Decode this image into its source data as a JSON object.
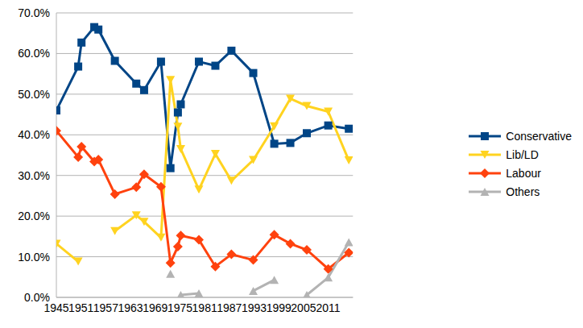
{
  "chart_data": {
    "type": "line",
    "x": [
      1945.0,
      1950.3,
      1951.1,
      1954.2,
      1955.2,
      1959.2,
      1964.4,
      1966.3,
      1970.4,
      1972.7,
      1974.5,
      1975.2,
      1979.6,
      1983.6,
      1987.5,
      1992.8,
      1997.9,
      2001.8,
      2005.8,
      2011.0,
      2016.0
    ],
    "xlim": [
      1945,
      2017
    ],
    "xticks": [
      1945,
      1951,
      1957,
      1963,
      1969,
      1975,
      1981,
      1987,
      1993,
      1999,
      2005,
      2011
    ],
    "ylim": [
      0,
      70
    ],
    "yticks": [
      {
        "value": 0,
        "label": "0.0%"
      },
      {
        "value": 10,
        "label": "10.0%"
      },
      {
        "value": 20,
        "label": "20.0%"
      },
      {
        "value": 30,
        "label": "30.0%"
      },
      {
        "value": 40,
        "label": "40.0%"
      },
      {
        "value": 50,
        "label": "50.0%"
      },
      {
        "value": 60,
        "label": "60.0%"
      },
      {
        "value": 70,
        "label": "70.0%"
      }
    ],
    "grid": true,
    "legend": "right",
    "series": [
      {
        "name": "Conservative",
        "color": "#004586",
        "marker": "square",
        "values": [
          46.0,
          56.8,
          62.7,
          66.5,
          65.9,
          58.2,
          52.6,
          51.0,
          58.0,
          31.8,
          45.5,
          47.5,
          58.0,
          57.0,
          60.7,
          55.2,
          37.8,
          38.0,
          40.4,
          42.3,
          41.5
        ]
      },
      {
        "name": "Lib/LD",
        "color": "#ffd320",
        "marker": "triangle-down",
        "values": [
          13.2,
          8.8,
          null,
          null,
          null,
          16.3,
          20.2,
          18.6,
          14.7,
          53.5,
          42.0,
          36.5,
          26.5,
          35.3,
          28.7,
          33.8,
          42.1,
          48.9,
          47.1,
          45.7,
          33.7
        ]
      },
      {
        "name": "Labour",
        "color": "#ff420e",
        "marker": "diamond",
        "values": [
          41.0,
          34.5,
          37.1,
          33.4,
          33.9,
          25.4,
          27.1,
          30.3,
          27.2,
          8.5,
          12.5,
          15.2,
          14.2,
          7.6,
          10.6,
          9.2,
          15.4,
          13.2,
          11.7,
          7.0,
          11.0
        ]
      },
      {
        "name": "Others",
        "color": "#b3b3b3",
        "marker": "triangle",
        "values": [
          null,
          null,
          null,
          null,
          null,
          null,
          null,
          null,
          null,
          5.8,
          null,
          0.6,
          1.0,
          null,
          null,
          1.6,
          4.3,
          null,
          0.6,
          4.9,
          13.6
        ]
      }
    ]
  }
}
